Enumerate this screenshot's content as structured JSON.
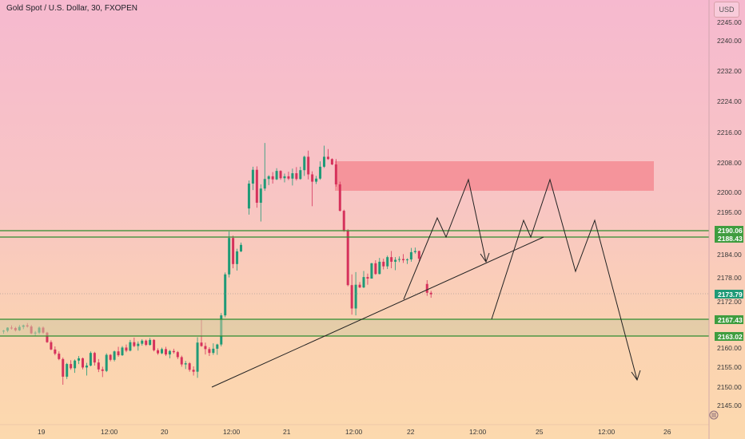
{
  "title": "Gold Spot / U.S. Dollar, 30, FXOPEN",
  "currency": "USD",
  "colors": {
    "up": "#1f9a77",
    "down": "#d6325c",
    "zone": "#f58c93",
    "level": "#2e8b2e",
    "band": "#d3c9a0"
  },
  "chart_data": {
    "type": "candlestick",
    "y_ticks": [
      "2245.00",
      "2240.00",
      "2232.00",
      "2224.00",
      "2216.00",
      "2208.00",
      "2200.00",
      "2195.00",
      "2184.00",
      "2178.00",
      "2172.00",
      "2160.00",
      "2155.00",
      "2150.00",
      "2145.00"
    ],
    "x_ticks": [
      "19",
      "12:00",
      "20",
      "12:00",
      "21",
      "12:00",
      "22",
      "12:00",
      "25",
      "12:00",
      "26"
    ],
    "price_labels": [
      "2190.06",
      "2188.43",
      "2173.79",
      "2167.43",
      "2163.02"
    ],
    "candles": [
      [
        2163.5,
        2163.8,
        2162.8,
        2163.6
      ],
      [
        2163.6,
        2164.5,
        2163.2,
        2164.4
      ],
      [
        2164.4,
        2165.0,
        2163.9,
        2164.3
      ],
      [
        2164.3,
        2164.6,
        2163.4,
        2163.7
      ],
      [
        2163.7,
        2165.1,
        2163.5,
        2164.6
      ],
      [
        2164.6,
        2165.2,
        2164.0,
        2165.0
      ],
      [
        2165.0,
        2165.6,
        2164.4,
        2164.7
      ],
      [
        2164.7,
        2165.1,
        2162.7,
        2162.9
      ],
      [
        2162.9,
        2163.5,
        2162.2,
        2163.1
      ],
      [
        2163.1,
        2164.7,
        2162.7,
        2164.4
      ],
      [
        2164.4,
        2164.7,
        2162.8,
        2163.1
      ],
      [
        2163.1,
        2163.3,
        2160.4,
        2160.6
      ],
      [
        2160.6,
        2161.1,
        2158.5,
        2158.7
      ],
      [
        2158.7,
        2159.5,
        2157.2,
        2157.6
      ],
      [
        2157.6,
        2158.2,
        2155.9,
        2156.2
      ],
      [
        2156.2,
        2156.6,
        2149.5,
        2151.6
      ],
      [
        2151.6,
        2155.2,
        2151.0,
        2154.9
      ],
      [
        2154.9,
        2155.9,
        2153.4,
        2153.8
      ],
      [
        2153.8,
        2156.1,
        2152.6,
        2155.8
      ],
      [
        2155.8,
        2157.0,
        2154.9,
        2156.4
      ],
      [
        2156.4,
        2156.6,
        2153.5,
        2154.0
      ],
      [
        2154.0,
        2155.2,
        2151.9,
        2154.5
      ],
      [
        2154.5,
        2158.2,
        2154.3,
        2157.8
      ],
      [
        2157.8,
        2158.1,
        2154.5,
        2155.3
      ],
      [
        2155.3,
        2156.2,
        2152.8,
        2153.5
      ],
      [
        2153.5,
        2154.2,
        2151.5,
        2153.1
      ],
      [
        2153.1,
        2157.7,
        2152.8,
        2157.3
      ],
      [
        2157.3,
        2157.5,
        2155.6,
        2156.0
      ],
      [
        2156.0,
        2158.4,
        2155.6,
        2158.2
      ],
      [
        2158.2,
        2159.4,
        2156.8,
        2157.2
      ],
      [
        2157.2,
        2159.6,
        2157.0,
        2159.2
      ],
      [
        2159.2,
        2160.0,
        2158.0,
        2158.4
      ],
      [
        2158.4,
        2161.2,
        2158.2,
        2160.6
      ],
      [
        2160.6,
        2161.8,
        2159.3,
        2159.6
      ],
      [
        2159.6,
        2160.8,
        2158.4,
        2160.2
      ],
      [
        2160.2,
        2161.4,
        2159.7,
        2161.0
      ],
      [
        2161.0,
        2161.3,
        2159.6,
        2159.9
      ],
      [
        2159.9,
        2161.7,
        2159.7,
        2161.2
      ],
      [
        2161.2,
        2161.4,
        2158.2,
        2158.5
      ],
      [
        2158.5,
        2159.0,
        2157.3,
        2157.7
      ],
      [
        2157.7,
        2159.2,
        2157.5,
        2158.8
      ],
      [
        2158.8,
        2159.4,
        2157.0,
        2157.4
      ],
      [
        2157.4,
        2158.6,
        2156.4,
        2158.3
      ],
      [
        2158.3,
        2158.9,
        2157.6,
        2158.0
      ],
      [
        2158.0,
        2158.3,
        2156.2,
        2156.7
      ],
      [
        2156.7,
        2157.1,
        2154.2,
        2154.8
      ],
      [
        2154.8,
        2155.7,
        2153.6,
        2155.1
      ],
      [
        2155.1,
        2155.4,
        2152.9,
        2153.4
      ],
      [
        2153.4,
        2154.3,
        2151.9,
        2152.9
      ],
      [
        2152.9,
        2161.9,
        2151.3,
        2160.5
      ],
      [
        2160.5,
        2166.4,
        2159.4,
        2159.6
      ],
      [
        2159.6,
        2160.5,
        2157.4,
        2158.8
      ],
      [
        2158.8,
        2159.3,
        2157.0,
        2157.8
      ],
      [
        2157.8,
        2160.3,
        2157.3,
        2158.9
      ],
      [
        2158.9,
        2160.2,
        2157.3,
        2160.0
      ],
      [
        2160.0,
        2168.2,
        2159.5,
        2167.6
      ],
      [
        2167.6,
        2178.8,
        2167.1,
        2178.3
      ],
      [
        2178.3,
        2189.5,
        2177.5,
        2187.8
      ],
      [
        2187.8,
        2188.4,
        2179.9,
        2181.0
      ],
      [
        2181.0,
        2185.0,
        2179.3,
        2184.3
      ],
      [
        2184.3,
        2186.6,
        2184.1,
        2186.0
      ],
      [
        2195.5,
        2202.8,
        2193.9,
        2202.0
      ],
      [
        2202.0,
        2206.4,
        2200.3,
        2205.6
      ],
      [
        2205.6,
        2206.5,
        2195.7,
        2197.0
      ],
      [
        2197.0,
        2201.8,
        2192.1,
        2200.7
      ],
      [
        2200.7,
        2212.6,
        2200.1,
        2203.2
      ],
      [
        2203.2,
        2204.2,
        2201.6,
        2203.9
      ],
      [
        2203.9,
        2205.0,
        2202.0,
        2203.1
      ],
      [
        2203.1,
        2206.0,
        2202.9,
        2205.3
      ],
      [
        2205.3,
        2205.5,
        2203.0,
        2203.4
      ],
      [
        2203.4,
        2204.6,
        2202.3,
        2203.9
      ],
      [
        2203.9,
        2205.1,
        2202.9,
        2203.3
      ],
      [
        2203.3,
        2205.9,
        2201.5,
        2204.7
      ],
      [
        2204.7,
        2206.3,
        2202.8,
        2203.2
      ],
      [
        2203.2,
        2206.4,
        2203.0,
        2205.5
      ],
      [
        2205.5,
        2209.3,
        2204.0,
        2209.0
      ],
      [
        2209.0,
        2210.6,
        2203.1,
        2204.4
      ],
      [
        2204.4,
        2205.2,
        2196.1,
        2202.5
      ],
      [
        2202.5,
        2204.0,
        2201.9,
        2203.3
      ],
      [
        2203.3,
        2207.8,
        2203.0,
        2206.4
      ],
      [
        2206.4,
        2211.9,
        2206.1,
        2209.0
      ],
      [
        2209.0,
        2211.0,
        2208.2,
        2208.4
      ],
      [
        2208.4,
        2208.6,
        2206.8,
        2207.0
      ],
      [
        2207.0,
        2208.4,
        2201.2,
        2201.8
      ],
      [
        2201.8,
        2202.5,
        2194.7,
        2194.9
      ],
      [
        2194.9,
        2195.2,
        2189.4,
        2189.7
      ],
      [
        2189.7,
        2190.1,
        2175.2,
        2175.5
      ],
      [
        2175.5,
        2178.3,
        2167.8,
        2169.4
      ],
      [
        2169.4,
        2178.9,
        2167.6,
        2175.6
      ],
      [
        2175.6,
        2176.3,
        2174.7,
        2174.9
      ],
      [
        2174.9,
        2179.2,
        2174.7,
        2177.6
      ],
      [
        2177.6,
        2178.5,
        2175.6,
        2177.2
      ],
      [
        2177.2,
        2181.3,
        2177.2,
        2181.2
      ],
      [
        2181.2,
        2182.0,
        2178.2,
        2178.4
      ],
      [
        2178.4,
        2182.6,
        2178.3,
        2181.6
      ],
      [
        2181.6,
        2182.4,
        2179.6,
        2180.4
      ],
      [
        2180.4,
        2183.2,
        2179.7,
        2182.8
      ],
      [
        2182.8,
        2184.4,
        2179.9,
        2181.6
      ],
      [
        2181.6,
        2182.8,
        2179.4,
        2182.1
      ],
      [
        2182.1,
        2183.0,
        2181.5,
        2182.3
      ],
      [
        2182.3,
        2183.6,
        2181.3,
        2182.0
      ],
      [
        2182.0,
        2182.5,
        2181.0,
        2182.2
      ],
      [
        2182.2,
        2185.2,
        2181.6,
        2184.1
      ],
      [
        2184.1,
        2185.3,
        2183.7,
        2184.4
      ],
      [
        2184.4,
        2184.5,
        2181.7,
        2182.4
      ],
      [
        2175.8,
        2176.8,
        2172.7,
        2173.5
      ],
      [
        2173.5,
        2174.0,
        2172.2,
        2173.1
      ]
    ],
    "levels": [
      2190.06,
      2188.43,
      2173.79,
      2167.43,
      2163.02
    ]
  }
}
